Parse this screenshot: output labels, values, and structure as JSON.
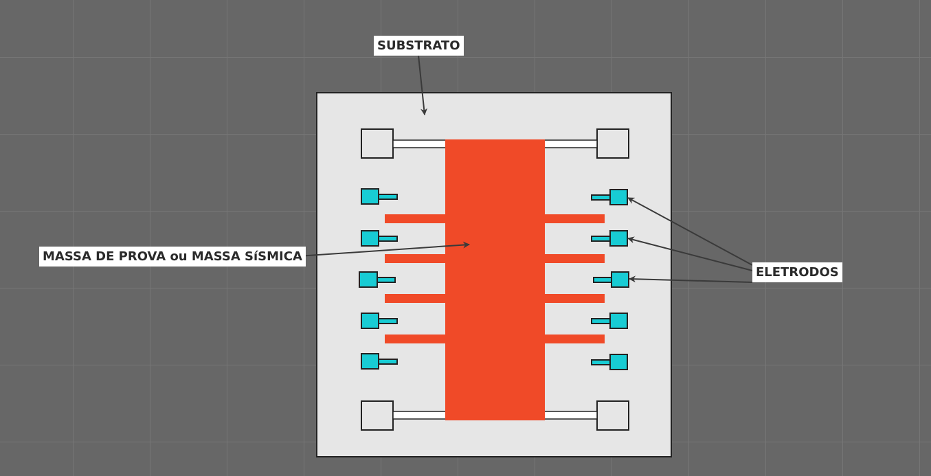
{
  "labels": {
    "substrate": "SUBSTRATO",
    "proof_mass": "MASSA DE PROVA ou MASSA SíSMICA",
    "electrodes": "ELETRODOS"
  },
  "colors": {
    "background": "#676767",
    "grid": "#767676",
    "substrate": "#e6e6e6",
    "proof_mass": "#f04a28",
    "electrode": "#18ccd4",
    "outline": "#222222",
    "arrow": "#3a3a3a"
  },
  "icons": {
    "arrow_head": "arrow-icon"
  }
}
